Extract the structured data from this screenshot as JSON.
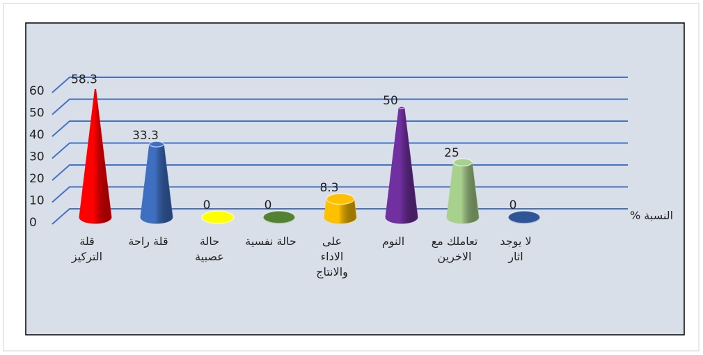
{
  "chart_data": {
    "type": "cone",
    "categories": [
      "قلة\nالتركيز",
      "قلة راحة",
      "حالة\nعصبية",
      "حالة نفسية",
      "على\nالاداء\nوالانتاج",
      "النوم",
      "تعاملك مع\nالاخرين",
      "لا يوجد\nاثار"
    ],
    "values": [
      58.3,
      33.3,
      0,
      0,
      8.3,
      50,
      25,
      0
    ],
    "colors": [
      "#ff0000",
      "#3f6fc0",
      "#ffff00",
      "#548235",
      "#ffc000",
      "#7030a0",
      "#a9d18e",
      "#2f5597"
    ],
    "ylabel": "النسبة %",
    "ylim": [
      0,
      60
    ],
    "yticks": [
      0,
      10,
      20,
      30,
      40,
      50,
      60
    ],
    "grid": true
  }
}
